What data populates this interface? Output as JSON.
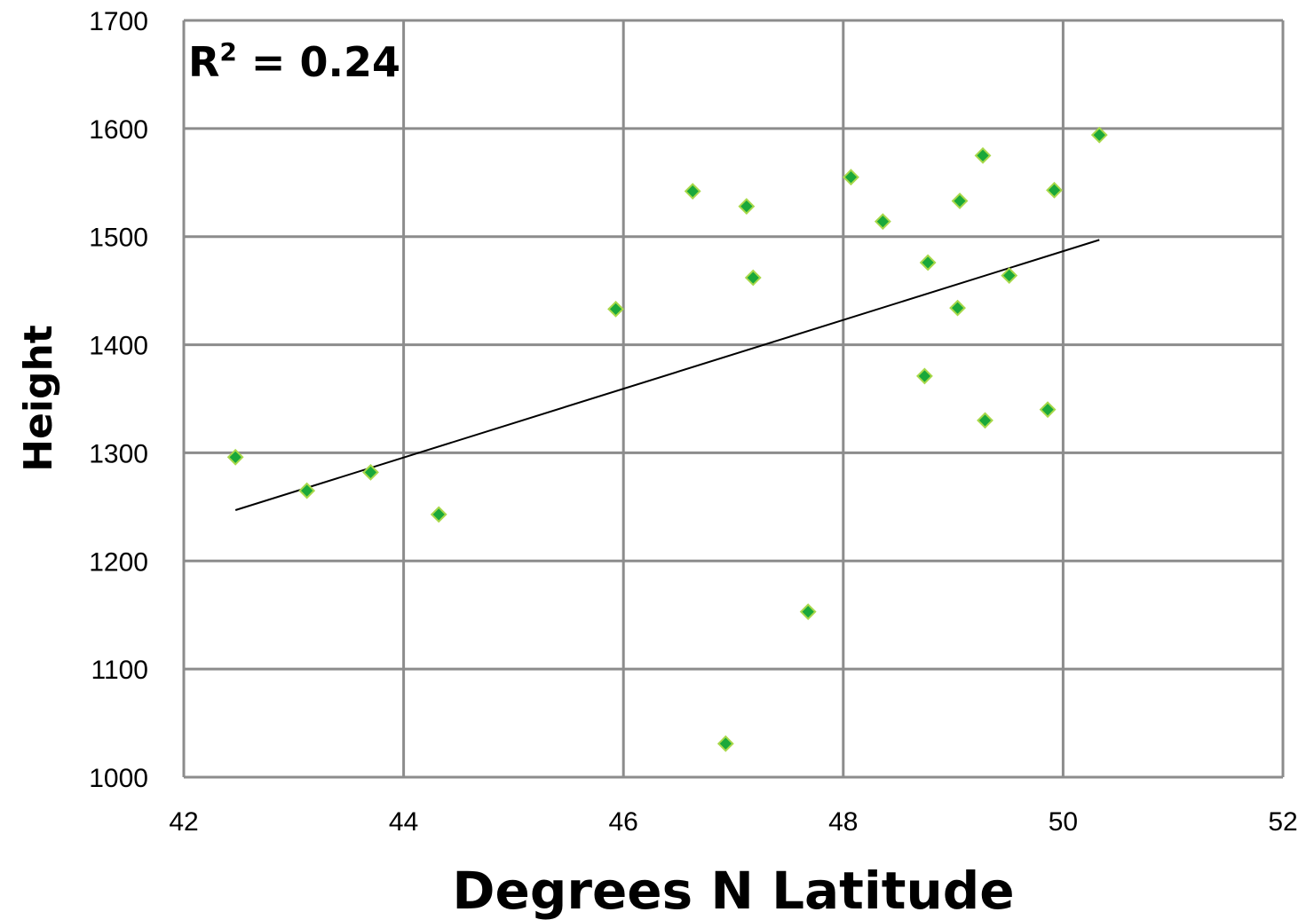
{
  "chart_data": {
    "type": "scatter",
    "title": "",
    "xlabel": "Degrees N Latitude",
    "ylabel": "Height",
    "xlim": [
      42,
      52
    ],
    "ylim": [
      1000,
      1700
    ],
    "xticks": [
      "42",
      "44",
      "46",
      "48",
      "50",
      "52"
    ],
    "yticks": [
      "1000",
      "1100",
      "1200",
      "1300",
      "1400",
      "1500",
      "1600",
      "1700"
    ],
    "grid": true,
    "legend": "none",
    "annotation": {
      "base": "R",
      "superscript": "2",
      "rest": " = 0.24"
    },
    "marker_color": "#1aa83a",
    "marker_edge_color": "#a8d84a",
    "trendline_color": "#000000",
    "points": [
      {
        "x": 42.47,
        "y": 1296
      },
      {
        "x": 43.12,
        "y": 1265
      },
      {
        "x": 43.7,
        "y": 1282
      },
      {
        "x": 44.32,
        "y": 1243
      },
      {
        "x": 45.93,
        "y": 1433
      },
      {
        "x": 46.63,
        "y": 1542
      },
      {
        "x": 46.93,
        "y": 1031
      },
      {
        "x": 47.12,
        "y": 1528
      },
      {
        "x": 47.18,
        "y": 1462
      },
      {
        "x": 47.68,
        "y": 1153
      },
      {
        "x": 48.07,
        "y": 1555
      },
      {
        "x": 48.36,
        "y": 1514
      },
      {
        "x": 48.74,
        "y": 1371
      },
      {
        "x": 48.77,
        "y": 1476
      },
      {
        "x": 49.04,
        "y": 1434
      },
      {
        "x": 49.06,
        "y": 1533
      },
      {
        "x": 49.27,
        "y": 1575
      },
      {
        "x": 49.29,
        "y": 1330
      },
      {
        "x": 49.51,
        "y": 1464
      },
      {
        "x": 49.86,
        "y": 1340
      },
      {
        "x": 49.92,
        "y": 1543
      },
      {
        "x": 50.33,
        "y": 1594
      }
    ],
    "trendline": {
      "x": [
        42.47,
        50.33
      ],
      "y": [
        1247,
        1497
      ]
    }
  }
}
